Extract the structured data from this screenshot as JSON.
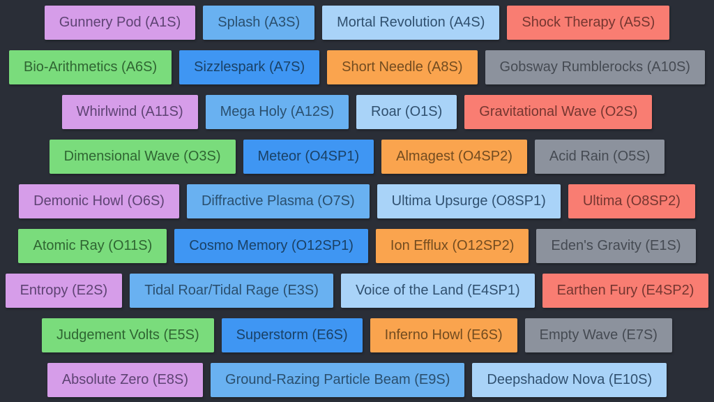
{
  "page": {
    "background": "#2A2E37"
  },
  "palette": {
    "purple": {
      "bg": "#D69DE9",
      "text": "#5E4373"
    },
    "blue": {
      "bg": "#69B1F1",
      "text": "#2A4F6E"
    },
    "lightblue": {
      "bg": "#A9D3F8",
      "text": "#30506F"
    },
    "red": {
      "bg": "#F97D72",
      "text": "#753630"
    },
    "green": {
      "bg": "#7ADC7C",
      "text": "#2F6532"
    },
    "darkblue": {
      "bg": "#3F96F3",
      "text": "#1A4166"
    },
    "orange": {
      "bg": "#FAA44E",
      "text": "#734C20"
    },
    "gray": {
      "bg": "#8C929D",
      "text": "#454A52"
    }
  },
  "rows": [
    {
      "buttons": [
        {
          "label": "Gunnery Pod (A1S)",
          "color": "purple"
        },
        {
          "label": "Splash (A3S)",
          "color": "blue"
        },
        {
          "label": "Mortal Revolution (A4S)",
          "color": "lightblue"
        },
        {
          "label": "Shock Therapy (A5S)",
          "color": "red"
        }
      ]
    },
    {
      "buttons": [
        {
          "label": "Bio-Arithmetics (A6S)",
          "color": "green"
        },
        {
          "label": "Sizzlespark (A7S)",
          "color": "darkblue"
        },
        {
          "label": "Short Needle (A8S)",
          "color": "orange"
        },
        {
          "label": "Gobsway Rumblerocks (A10S)",
          "color": "gray"
        }
      ]
    },
    {
      "buttons": [
        {
          "label": "Whirlwind (A11S)",
          "color": "purple"
        },
        {
          "label": "Mega Holy (A12S)",
          "color": "blue"
        },
        {
          "label": "Roar (O1S)",
          "color": "lightblue"
        },
        {
          "label": "Gravitational Wave (O2S)",
          "color": "red"
        }
      ]
    },
    {
      "buttons": [
        {
          "label": "Dimensional Wave (O3S)",
          "color": "green"
        },
        {
          "label": "Meteor (O4SP1)",
          "color": "darkblue"
        },
        {
          "label": "Almagest (O4SP2)",
          "color": "orange"
        },
        {
          "label": "Acid Rain (O5S)",
          "color": "gray"
        }
      ]
    },
    {
      "buttons": [
        {
          "label": "Demonic Howl (O6S)",
          "color": "purple"
        },
        {
          "label": "Diffractive Plasma (O7S)",
          "color": "blue"
        },
        {
          "label": "Ultima Upsurge (O8SP1)",
          "color": "lightblue"
        },
        {
          "label": "Ultima (O8SP2)",
          "color": "red"
        }
      ]
    },
    {
      "buttons": [
        {
          "label": "Atomic Ray (O11S)",
          "color": "green"
        },
        {
          "label": "Cosmo Memory (O12SP1)",
          "color": "darkblue"
        },
        {
          "label": "Ion Efflux (O12SP2)",
          "color": "orange"
        },
        {
          "label": "Eden's Gravity (E1S)",
          "color": "gray"
        }
      ]
    },
    {
      "buttons": [
        {
          "label": "Entropy (E2S)",
          "color": "purple"
        },
        {
          "label": "Tidal Roar/Tidal Rage (E3S)",
          "color": "blue"
        },
        {
          "label": "Voice of the Land (E4SP1)",
          "color": "lightblue"
        },
        {
          "label": "Earthen Fury (E4SP2)",
          "color": "red"
        }
      ]
    },
    {
      "buttons": [
        {
          "label": "Judgement Volts (E5S)",
          "color": "green"
        },
        {
          "label": "Superstorm (E6S)",
          "color": "darkblue"
        },
        {
          "label": "Inferno Howl (E6S)",
          "color": "orange"
        },
        {
          "label": "Empty Wave (E7S)",
          "color": "gray"
        }
      ]
    },
    {
      "buttons": [
        {
          "label": "Absolute Zero (E8S)",
          "color": "purple"
        },
        {
          "label": "Ground-Razing Particle Beam (E9S)",
          "color": "blue"
        },
        {
          "label": "Deepshadow Nova (E10S)",
          "color": "lightblue"
        }
      ]
    }
  ]
}
